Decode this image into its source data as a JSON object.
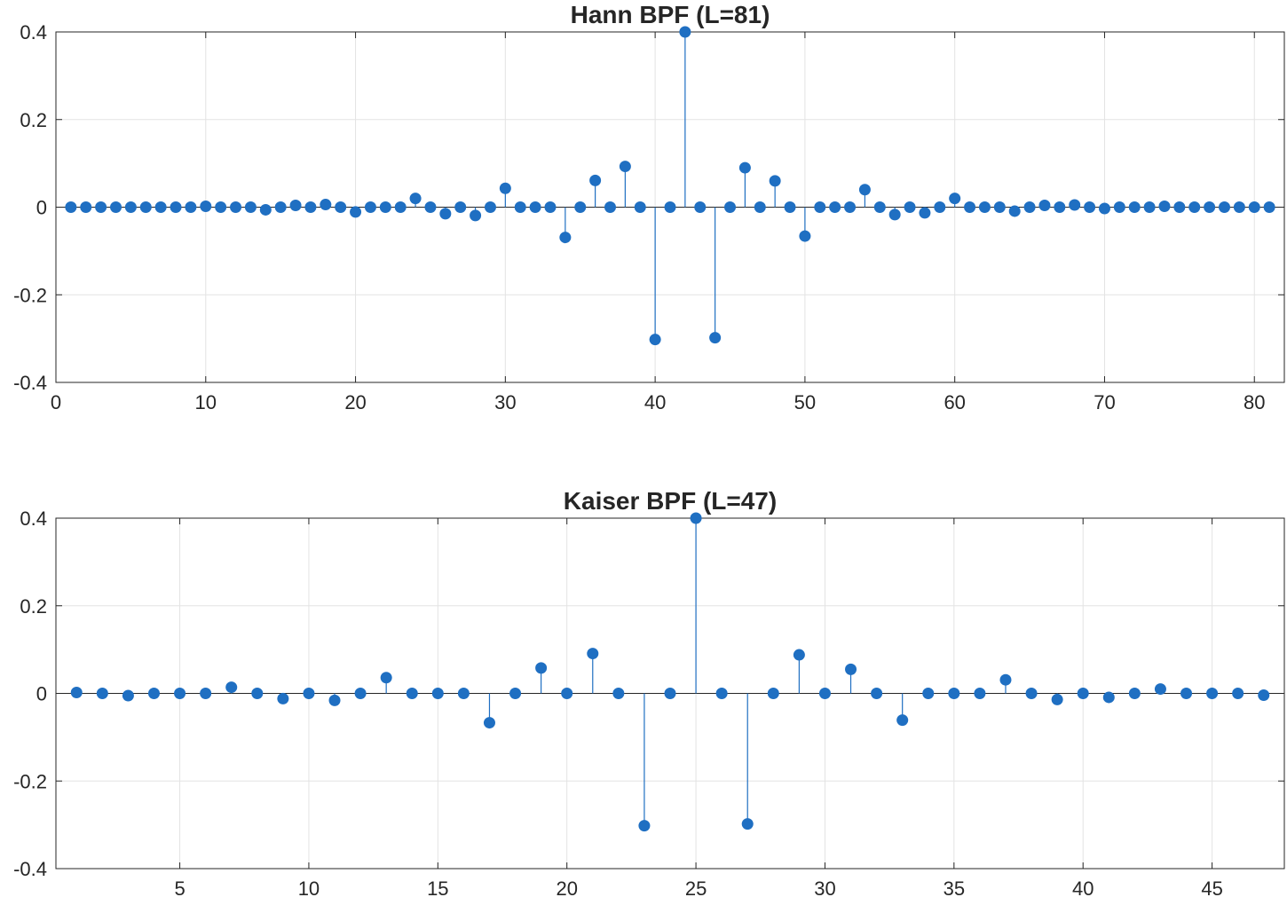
{
  "chart_data": [
    {
      "type": "stem",
      "title": "Hann BPF (L=81)",
      "xlabel": "",
      "ylabel": "",
      "xlim": [
        0,
        82
      ],
      "ylim": [
        -0.4,
        0.4
      ],
      "xticks": [
        0,
        10,
        20,
        30,
        40,
        50,
        60,
        70,
        80
      ],
      "xtick_labels": [
        "0",
        "10",
        "20",
        "30",
        "40",
        "50",
        "60",
        "70",
        "80"
      ],
      "yticks": [
        0.4,
        0.2,
        0,
        -0.2,
        -0.4
      ],
      "ytick_labels": [
        "0.4",
        "0.2",
        "0",
        "-0.2",
        "-0.4"
      ],
      "grid": true,
      "color": "#1f6fc2",
      "x": [
        1,
        2,
        3,
        4,
        5,
        6,
        7,
        8,
        9,
        10,
        11,
        12,
        13,
        14,
        15,
        16,
        17,
        18,
        19,
        20,
        21,
        22,
        23,
        24,
        25,
        26,
        27,
        28,
        29,
        30,
        31,
        32,
        33,
        34,
        35,
        36,
        37,
        38,
        39,
        40,
        41,
        42,
        43,
        44,
        45,
        46,
        47,
        48,
        49,
        50,
        51,
        52,
        53,
        54,
        55,
        56,
        57,
        58,
        59,
        60,
        61,
        62,
        63,
        64,
        65,
        66,
        67,
        68,
        69,
        70,
        71,
        72,
        73,
        74,
        75,
        76,
        77,
        78,
        79,
        80,
        81
      ],
      "values": [
        0,
        0,
        0,
        0,
        0,
        0,
        0,
        0,
        0,
        0.002,
        0,
        0,
        0,
        -0.006,
        0,
        0.004,
        0,
        0.006,
        0,
        -0.011,
        0,
        0,
        0,
        0.02,
        0,
        -0.015,
        0,
        -0.019,
        0,
        0.043,
        0,
        0,
        0,
        -0.069,
        0,
        0.061,
        0,
        0.093,
        0,
        -0.302,
        0,
        0.4,
        0,
        -0.298,
        0,
        0.09,
        0,
        0.06,
        0,
        -0.066,
        0,
        0,
        0,
        0.04,
        0,
        -0.017,
        0,
        -0.013,
        0,
        0.02,
        0,
        0,
        0,
        -0.009,
        0,
        0.004,
        0,
        0.005,
        0,
        -0.003,
        0,
        0,
        0,
        0.002,
        0,
        0,
        0,
        0,
        0,
        0,
        0
      ]
    },
    {
      "type": "stem",
      "title": "Kaiser BPF (L=47)",
      "xlabel": "",
      "ylabel": "",
      "xlim": [
        0.2,
        47.8
      ],
      "ylim": [
        -0.4,
        0.4
      ],
      "xticks": [
        5,
        10,
        15,
        20,
        25,
        30,
        35,
        40,
        45
      ],
      "xtick_labels": [
        "5",
        "10",
        "15",
        "20",
        "25",
        "30",
        "35",
        "40",
        "45"
      ],
      "yticks": [
        0.4,
        0.2,
        0,
        -0.2,
        -0.4
      ],
      "ytick_labels": [
        "0.4",
        "0.2",
        "0",
        "-0.2",
        "-0.4"
      ],
      "grid": true,
      "color": "#1f6fc2",
      "x": [
        1,
        2,
        3,
        4,
        5,
        6,
        7,
        8,
        9,
        10,
        11,
        12,
        13,
        14,
        15,
        16,
        17,
        18,
        19,
        20,
        21,
        22,
        23,
        24,
        25,
        26,
        27,
        28,
        29,
        30,
        31,
        32,
        33,
        34,
        35,
        36,
        37,
        38,
        39,
        40,
        41,
        42,
        43,
        44,
        45,
        46,
        47
      ],
      "values": [
        0.002,
        0,
        -0.005,
        0,
        0,
        0,
        0.014,
        0,
        -0.012,
        0,
        -0.016,
        0,
        0.036,
        0,
        0,
        0,
        -0.067,
        0,
        0.058,
        0,
        0.091,
        0,
        -0.302,
        0,
        0.4,
        0,
        -0.298,
        0,
        0.088,
        0,
        0.055,
        0,
        -0.061,
        0,
        0,
        0,
        0.031,
        0,
        -0.014,
        0,
        -0.009,
        0,
        0.01,
        0,
        0,
        0,
        -0.004
      ]
    }
  ]
}
